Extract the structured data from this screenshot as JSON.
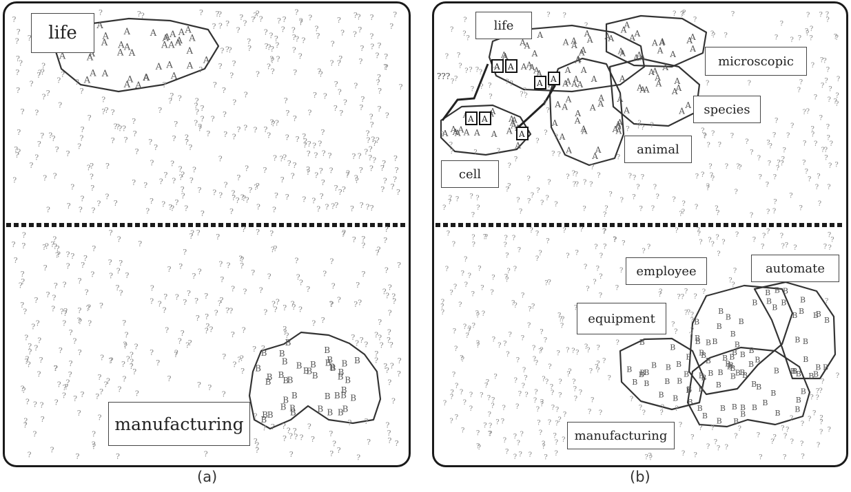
{
  "figure": {
    "panels": [
      {
        "caption": "(a)",
        "labels": {
          "life": "life",
          "manufacturing": "manufacturing"
        },
        "cluster_letters": [
          "A",
          "B"
        ]
      },
      {
        "caption": "(b)",
        "labels": {
          "life": "life",
          "microscopic": "microscopic",
          "species": "species",
          "animal": "animal",
          "cell": "cell",
          "employee": "employee",
          "automate": "automate",
          "equipment": "equipment",
          "manufacturing": "manufacturing"
        },
        "unknown_marker": "???",
        "cluster_letters": [
          "A",
          "B"
        ]
      }
    ],
    "glyphs": {
      "unknown": "?"
    }
  },
  "colors": {
    "frame": "#1a1a1a",
    "glyph_gray": "#8a8a8a",
    "cluster_outline": "#333333",
    "divider": "#1a1a1a"
  }
}
